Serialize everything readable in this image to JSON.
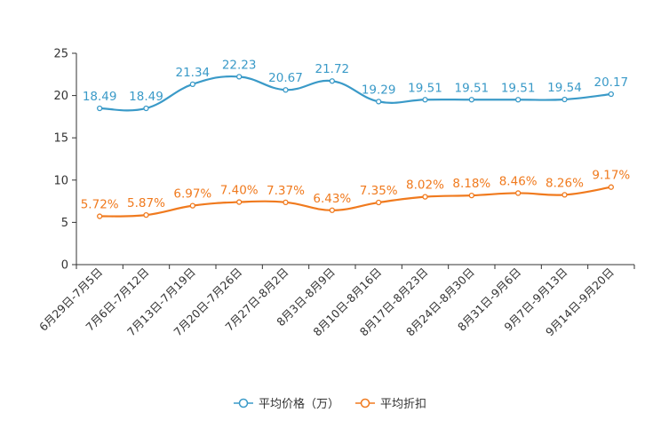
{
  "chart_data": {
    "type": "line",
    "categories": [
      "6月29日-7月5日",
      "7月6日-7月12日",
      "7月13日-7月19日",
      "7月20日-7月26日",
      "7月27日-8月2日",
      "8月3日-8月9日",
      "8月10日-8月16日",
      "8月17日-8月23日",
      "8月24日-8月30日",
      "8月31日-9月6日",
      "9月7日-9月13日",
      "9月14日-9月20日"
    ],
    "ylim": [
      0,
      25
    ],
    "yticks": [
      0,
      5,
      10,
      15,
      20,
      25
    ],
    "series": [
      {
        "name": "平均价格（万）",
        "color": "#3a9ac8",
        "values": [
          18.49,
          18.49,
          21.34,
          22.23,
          20.67,
          21.72,
          19.29,
          19.51,
          19.51,
          19.51,
          19.54,
          20.17
        ],
        "labels": [
          "18.49",
          "18.49",
          "21.34",
          "22.23",
          "20.67",
          "21.72",
          "19.29",
          "19.51",
          "19.51",
          "19.51",
          "19.54",
          "20.17"
        ]
      },
      {
        "name": "平均折扣",
        "color": "#f07a1e",
        "values": [
          5.72,
          5.87,
          6.97,
          7.4,
          7.37,
          6.43,
          7.35,
          8.02,
          8.18,
          8.46,
          8.26,
          9.17
        ],
        "labels": [
          "5.72%",
          "5.87%",
          "6.97%",
          "7.40%",
          "7.37%",
          "6.43%",
          "7.35%",
          "8.02%",
          "8.18%",
          "8.46%",
          "8.26%",
          "9.17%"
        ]
      }
    ],
    "legend_position": "bottom-center"
  }
}
